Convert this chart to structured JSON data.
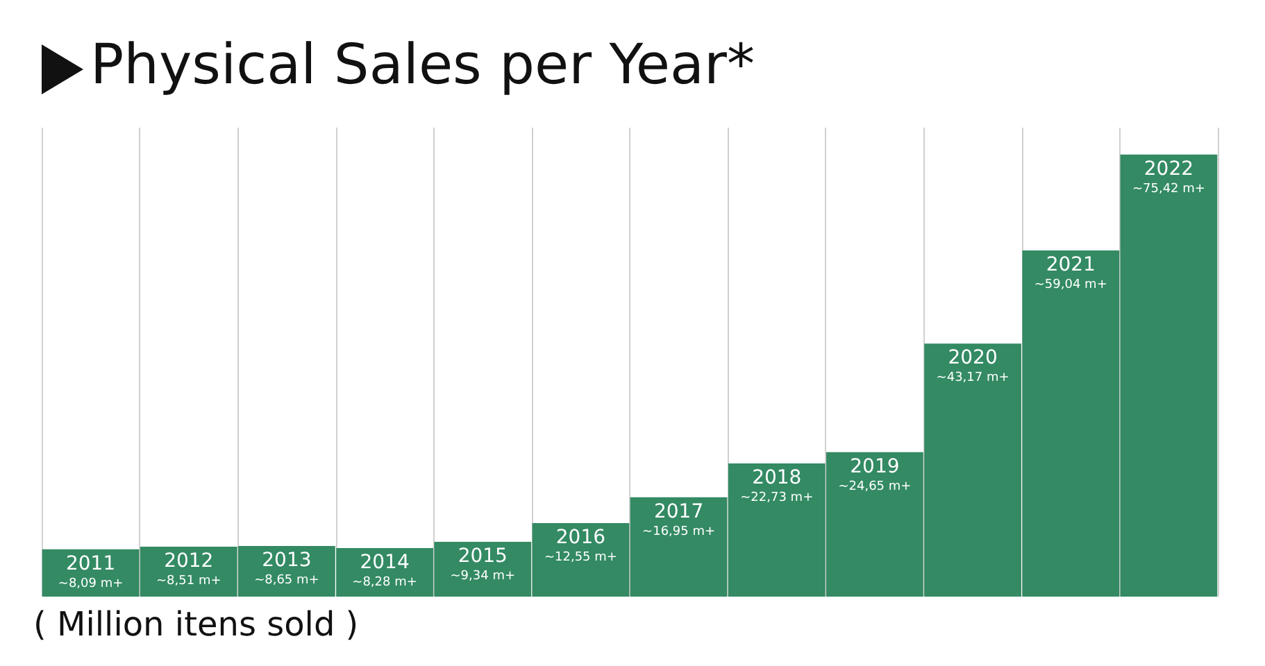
{
  "chart_data": {
    "type": "bar",
    "title": "Physical Sales per Year*",
    "categories": [
      "2011",
      "2012",
      "2013",
      "2014",
      "2015",
      "2016",
      "2017",
      "2018",
      "2019",
      "2020",
      "2021",
      "2022"
    ],
    "values": [
      8.09,
      8.51,
      8.65,
      8.28,
      9.34,
      12.55,
      16.95,
      22.73,
      24.65,
      43.17,
      59.04,
      75.42
    ],
    "value_labels": [
      "~8,09 m+",
      "~8,51 m+",
      "~8,65 m+",
      "~8,28 m+",
      "~9,34 m+",
      "~12,55 m+",
      "~16,95 m+",
      "~22,73 m+",
      "~24,65 m+",
      "~43,17 m+",
      "~59,04 m+",
      "~75,42 m+"
    ],
    "color": "#338a63",
    "grid": "x",
    "annotations": [
      "( Million itens sold )"
    ]
  }
}
